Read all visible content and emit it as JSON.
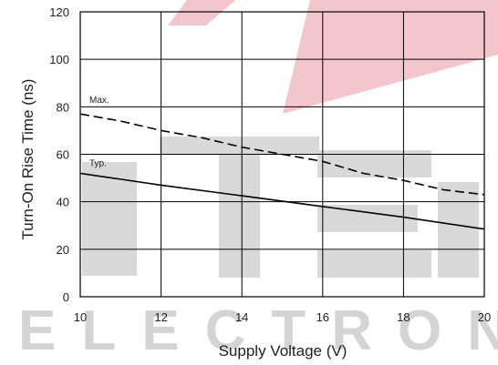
{
  "chart_data": {
    "type": "line",
    "title": "",
    "xlabel": "Supply Voltage (V)",
    "ylabel": "Turn-On Rise Time  (ns)",
    "xlim": [
      10,
      20
    ],
    "ylim": [
      0,
      120
    ],
    "xticks": [
      10,
      12,
      14,
      16,
      18,
      20
    ],
    "yticks": [
      0,
      20,
      40,
      60,
      80,
      100,
      120
    ],
    "grid": true,
    "series": [
      {
        "name": "Max.",
        "style": "dashed",
        "color": "#000000",
        "x": [
          10,
          11,
          12,
          13,
          14,
          15,
          16,
          17,
          18,
          19,
          20
        ],
        "y": [
          77,
          74,
          70,
          67,
          63,
          60,
          57,
          52,
          49,
          45,
          43
        ]
      },
      {
        "name": "Typ.",
        "style": "solid",
        "color": "#000000",
        "x": [
          10,
          12,
          14,
          16,
          18,
          20
        ],
        "y": [
          52,
          47,
          42.5,
          38,
          33.5,
          28.5
        ]
      }
    ]
  },
  "watermark": {
    "text": "ELECTRONIC",
    "text_color": "#d4d4d4",
    "block_color": "#d9d9d9",
    "accent_color": "#f3c6cd"
  }
}
